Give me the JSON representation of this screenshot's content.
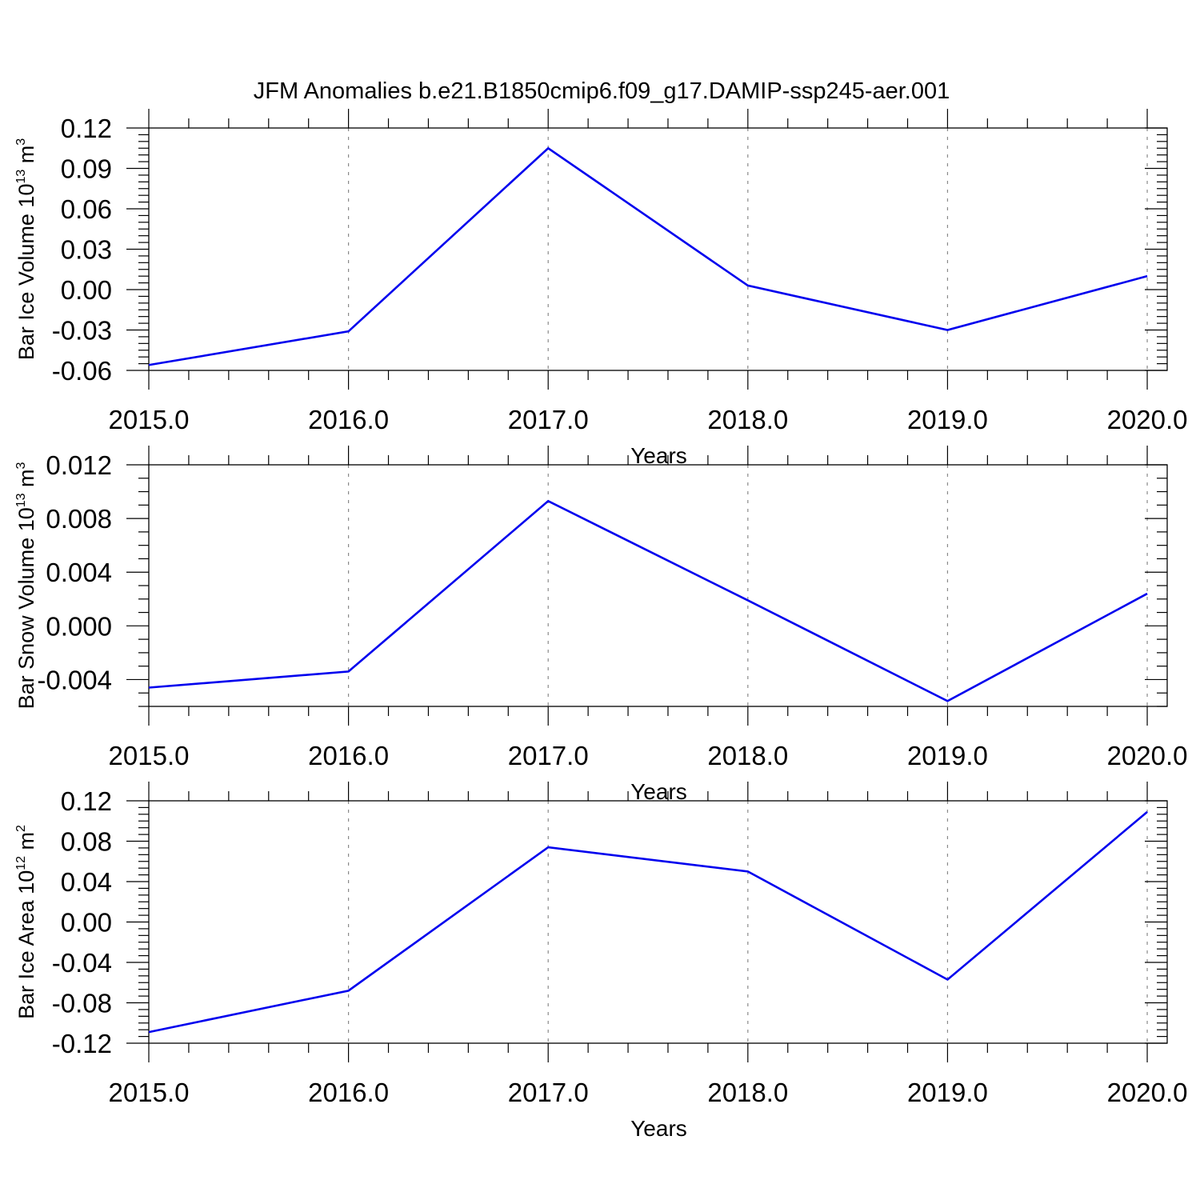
{
  "figure": {
    "title": "JFM Anomalies b.e21.B1850cmip6.f09_g17.DAMIP-ssp245-aer.001"
  },
  "colors": {
    "series": "#0000ee",
    "frame": "#000000",
    "grid": "#8a8a8a"
  },
  "chart_data": [
    {
      "type": "line",
      "title": "",
      "xlabel": "Years",
      "ylabel": {
        "text": "Bar Ice Volume 10",
        "exponent": "13",
        "unit": " m",
        "unit_exponent": "3"
      },
      "x": [
        2015,
        2016,
        2017,
        2018,
        2019,
        2020
      ],
      "xlim": [
        2015,
        2020.1
      ],
      "xticks": [
        2015,
        2016,
        2017,
        2018,
        2019,
        2020
      ],
      "xtick_labels": [
        "2015.0",
        "2016.0",
        "2017.0",
        "2018.0",
        "2019.0",
        "2020.0"
      ],
      "ylim": [
        -0.06,
        0.12
      ],
      "yticks": [
        -0.06,
        -0.03,
        0.0,
        0.03,
        0.06,
        0.09,
        0.12
      ],
      "ytick_labels": [
        "-0.06",
        "-0.03",
        "0.00",
        "0.03",
        "0.06",
        "0.09",
        "0.12"
      ],
      "grid": "x-dashed",
      "series": [
        {
          "values": [
            -0.056,
            -0.031,
            0.105,
            0.003,
            -0.03,
            0.01
          ]
        }
      ]
    },
    {
      "type": "line",
      "title": "",
      "xlabel": "Years",
      "ylabel": {
        "text": "Bar Snow Volume 10",
        "exponent": "13",
        "unit": " m",
        "unit_exponent": "3"
      },
      "x": [
        2015,
        2016,
        2017,
        2018,
        2019,
        2020
      ],
      "xlim": [
        2015,
        2020.1
      ],
      "xticks": [
        2015,
        2016,
        2017,
        2018,
        2019,
        2020
      ],
      "xtick_labels": [
        "2015.0",
        "2016.0",
        "2017.0",
        "2018.0",
        "2019.0",
        "2020.0"
      ],
      "ylim": [
        -0.006,
        0.012
      ],
      "yticks": [
        -0.004,
        0.0,
        0.004,
        0.008,
        0.012
      ],
      "ytick_labels": [
        "-0.004",
        "0.000",
        "0.004",
        "0.008",
        "0.012"
      ],
      "grid": "x-dashed",
      "series": [
        {
          "values": [
            -0.0046,
            -0.0034,
            0.0093,
            0.0019,
            -0.0056,
            0.0024
          ]
        }
      ]
    },
    {
      "type": "line",
      "title": "",
      "xlabel": "Years",
      "ylabel": {
        "text": "Bar Ice Area 10",
        "exponent": "12",
        "unit": " m",
        "unit_exponent": "2"
      },
      "x": [
        2015,
        2016,
        2017,
        2018,
        2019,
        2020
      ],
      "xlim": [
        2015,
        2020.1
      ],
      "xticks": [
        2015,
        2016,
        2017,
        2018,
        2019,
        2020
      ],
      "xtick_labels": [
        "2015.0",
        "2016.0",
        "2017.0",
        "2018.0",
        "2019.0",
        "2020.0"
      ],
      "ylim": [
        -0.12,
        0.12
      ],
      "yticks": [
        -0.12,
        -0.08,
        -0.04,
        0.0,
        0.04,
        0.08,
        0.12
      ],
      "ytick_labels": [
        "-0.12",
        "-0.08",
        "-0.04",
        "0.00",
        "0.04",
        "0.08",
        "0.12"
      ],
      "grid": "x-dashed",
      "series": [
        {
          "values": [
            -0.109,
            -0.068,
            0.074,
            0.05,
            -0.057,
            0.109
          ]
        }
      ]
    }
  ]
}
